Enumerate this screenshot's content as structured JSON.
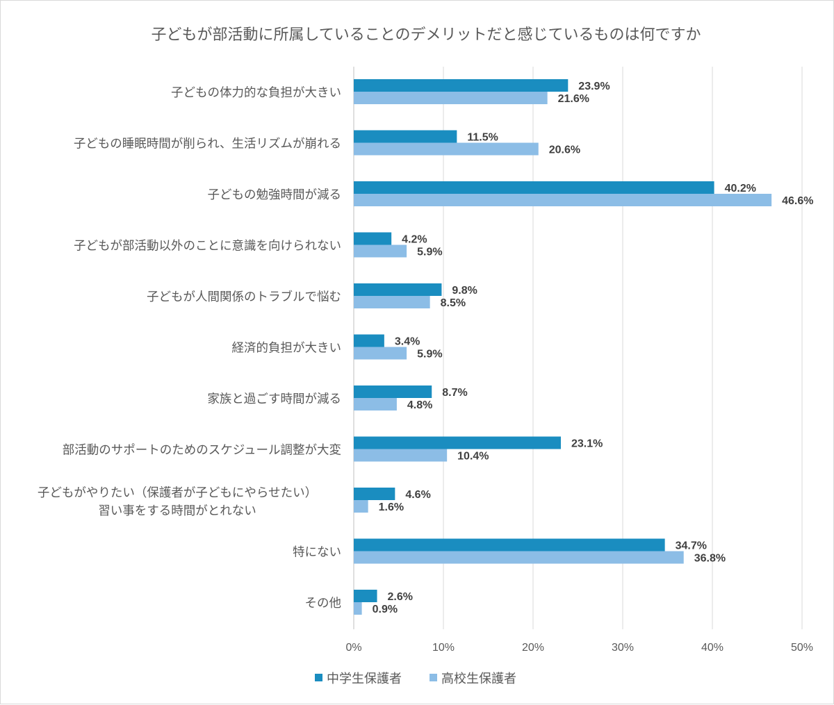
{
  "chart_data": {
    "type": "bar",
    "orientation": "horizontal",
    "title": "子どもが部活動に所属していることのデメリットだと感じているものは何ですか",
    "categories": [
      "子どもの体力的な負担が大きい",
      "子どもの睡眠時間が削られ、生活リズムが崩れる",
      "子どもの勉強時間が減る",
      "子どもが部活動以外のことに意識を向けられない",
      "子どもが人間関係のトラブルで悩む",
      "経済的負担が大きい",
      "家族と過ごす時間が減る",
      "部活動のサポートのためのスケジュール調整が大変",
      "子どもがやりたい（保護者が子どもにやらせたい）\n習い事をする時間がとれない",
      "特にない",
      "その他"
    ],
    "series": [
      {
        "name": "中学生保護者",
        "color": "#1a8dc0",
        "values": [
          23.9,
          11.5,
          40.2,
          4.2,
          9.8,
          3.4,
          8.7,
          23.1,
          4.6,
          34.7,
          2.6
        ]
      },
      {
        "name": "高校生保護者",
        "color": "#8cbde6",
        "values": [
          21.6,
          20.6,
          46.6,
          5.9,
          8.5,
          5.9,
          4.8,
          10.4,
          1.6,
          36.8,
          0.9
        ]
      }
    ],
    "xlim": [
      0,
      50
    ],
    "xticks": [
      "0%",
      "10%",
      "20%",
      "30%",
      "40%",
      "50%"
    ],
    "grid": true,
    "legend": "bottom",
    "data_label_suffix": "%",
    "gridline_color": "#d9d9d9"
  }
}
